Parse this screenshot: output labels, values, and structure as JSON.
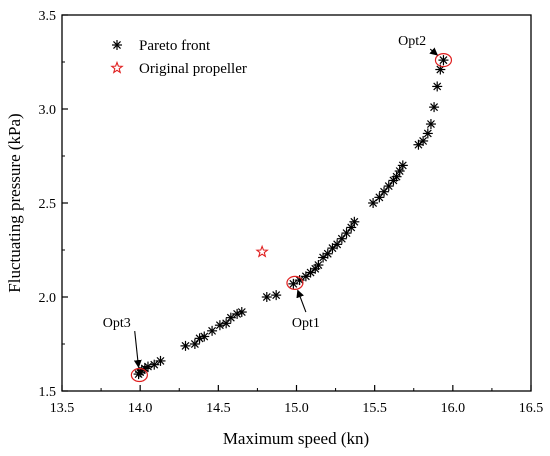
{
  "chart_data": {
    "type": "scatter",
    "title": "",
    "xlabel": "Maximum speed (kn)",
    "ylabel": "Fluctuating pressure (kPa)",
    "xlim": [
      13.5,
      16.5
    ],
    "ylim": [
      1.5,
      3.5
    ],
    "x_ticks": [
      13.5,
      14.0,
      14.5,
      15.0,
      15.5,
      16.0,
      16.5
    ],
    "x_tick_labels": [
      "13.5",
      "14.0",
      "14.5",
      "15.0",
      "15.5",
      "16.0",
      "16.5"
    ],
    "y_ticks": [
      1.5,
      2.0,
      2.5,
      3.0,
      3.5
    ],
    "y_tick_labels": [
      "1.5",
      "2.0",
      "2.5",
      "3.0",
      "3.5"
    ],
    "grid": false,
    "legend_position": "top-left",
    "series": [
      {
        "name": "Pareto front",
        "marker": "asterisk",
        "color": "#000000",
        "points": [
          [
            13.99,
            1.59
          ],
          [
            14.0,
            1.6
          ],
          [
            14.01,
            1.61
          ],
          [
            14.03,
            1.62
          ],
          [
            14.05,
            1.63
          ],
          [
            14.09,
            1.64
          ],
          [
            14.13,
            1.66
          ],
          [
            14.29,
            1.74
          ],
          [
            14.35,
            1.75
          ],
          [
            14.38,
            1.78
          ],
          [
            14.41,
            1.79
          ],
          [
            14.46,
            1.82
          ],
          [
            14.51,
            1.85
          ],
          [
            14.55,
            1.86
          ],
          [
            14.58,
            1.89
          ],
          [
            14.62,
            1.91
          ],
          [
            14.65,
            1.92
          ],
          [
            14.81,
            2.0
          ],
          [
            14.87,
            2.01
          ],
          [
            14.98,
            2.07
          ],
          [
            15.02,
            2.09
          ],
          [
            15.06,
            2.11
          ],
          [
            15.09,
            2.13
          ],
          [
            15.12,
            2.15
          ],
          [
            15.14,
            2.17
          ],
          [
            15.17,
            2.21
          ],
          [
            15.2,
            2.23
          ],
          [
            15.23,
            2.26
          ],
          [
            15.26,
            2.28
          ],
          [
            15.29,
            2.31
          ],
          [
            15.32,
            2.34
          ],
          [
            15.35,
            2.37
          ],
          [
            15.37,
            2.4
          ],
          [
            15.49,
            2.5
          ],
          [
            15.53,
            2.53
          ],
          [
            15.56,
            2.56
          ],
          [
            15.59,
            2.59
          ],
          [
            15.62,
            2.62
          ],
          [
            15.64,
            2.64
          ],
          [
            15.66,
            2.67
          ],
          [
            15.68,
            2.7
          ],
          [
            15.78,
            2.81
          ],
          [
            15.81,
            2.83
          ],
          [
            15.84,
            2.87
          ],
          [
            15.86,
            2.92
          ],
          [
            15.88,
            3.01
          ],
          [
            15.9,
            3.12
          ],
          [
            15.92,
            3.21
          ],
          [
            15.94,
            3.26
          ]
        ]
      },
      {
        "name": "Original propeller",
        "marker": "star-outline",
        "color": "#e02020",
        "points": [
          [
            14.78,
            2.24
          ]
        ]
      }
    ],
    "annotations": [
      {
        "label": "Opt1",
        "point": [
          14.99,
          2.075
        ],
        "text_at": [
          15.06,
          1.84
        ]
      },
      {
        "label": "Opt2",
        "point": [
          15.94,
          3.26
        ],
        "text_at": [
          15.74,
          3.34
        ]
      },
      {
        "label": "Opt3",
        "point": [
          13.995,
          1.585
        ],
        "text_at": [
          13.85,
          1.84
        ]
      }
    ],
    "highlight_color": "#e02020"
  }
}
